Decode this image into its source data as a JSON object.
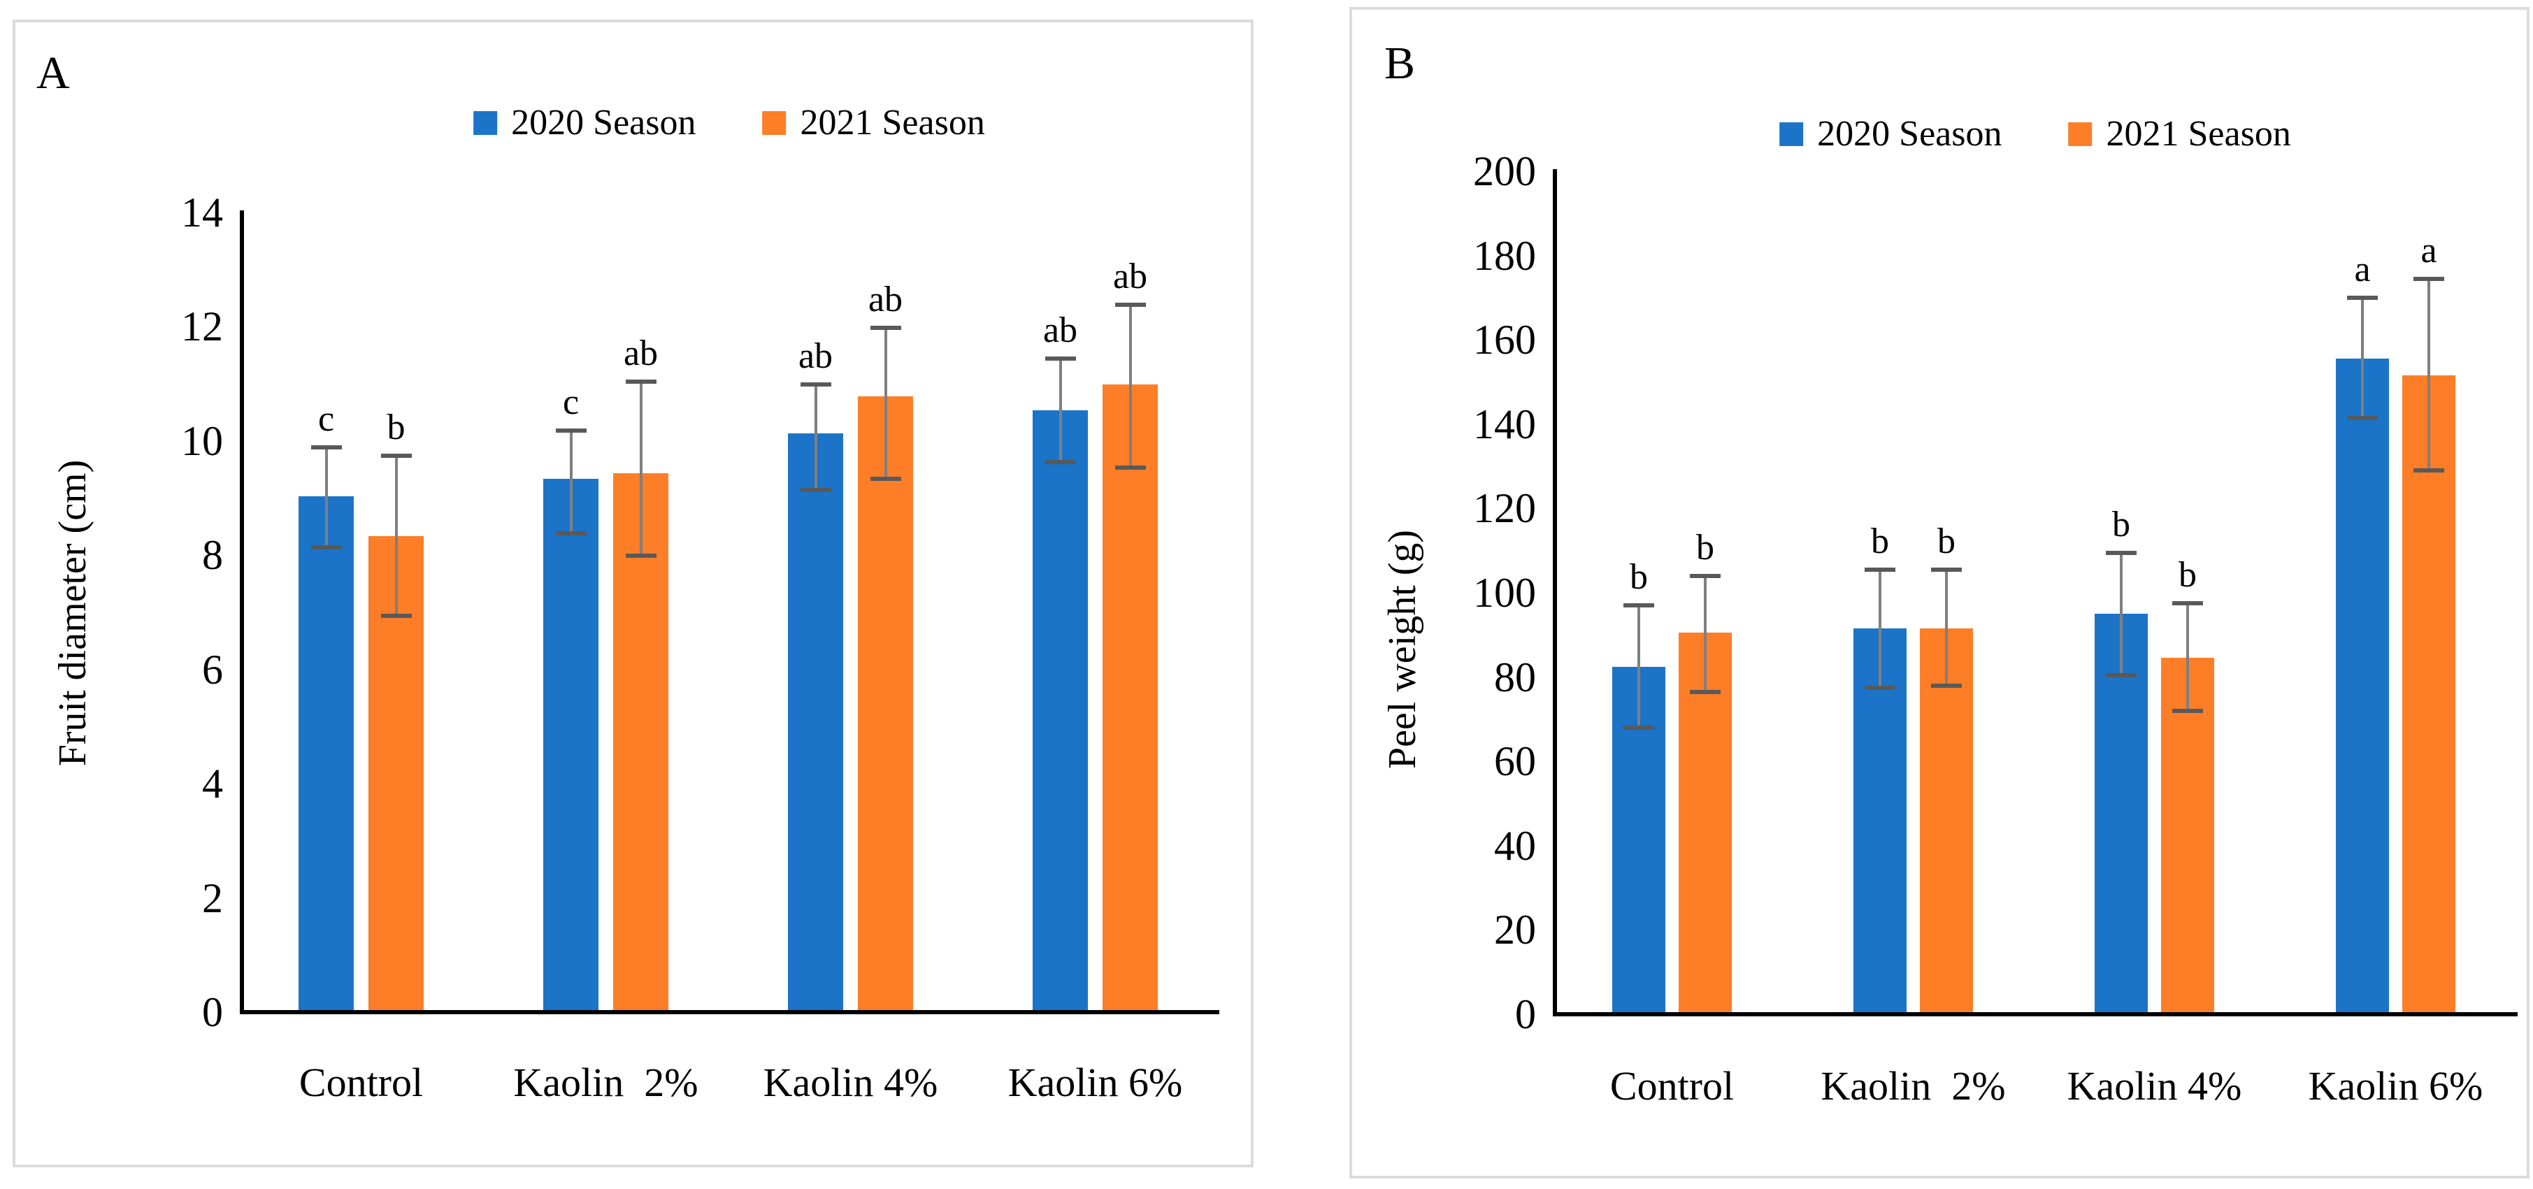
{
  "page": {
    "background": "#ffffff"
  },
  "colors": {
    "season2020": "#1B74C8",
    "season2021": "#FD7E27",
    "error_line": "#7F7F7F",
    "error_cap": "#595959",
    "axis_line": "#000000",
    "panel_border": "#DCDCDC",
    "text": "#000000"
  },
  "chart_data": [
    {
      "type": "bar",
      "panel_label": "A",
      "ylabel": "Fruit diameter (cm)",
      "ylim": [
        0,
        14
      ],
      "ytick_step": 2,
      "yticks": [
        0,
        2,
        4,
        6,
        8,
        10,
        12,
        14
      ],
      "categories": [
        "Control",
        "Kaolin  2%",
        "Kaolin 4%",
        "Kaolin 6%"
      ],
      "legend": [
        "2020 Season",
        "2021 Season"
      ],
      "legend_position": "top-center",
      "grid": false,
      "error_bars": true,
      "series": [
        {
          "name": "2020 Season",
          "color_key": "season2020",
          "values": [
            9.0,
            9.3,
            10.1,
            10.5
          ],
          "err_low": [
            8.1,
            8.35,
            9.1,
            9.6
          ],
          "err_high": [
            9.85,
            10.15,
            10.95,
            11.4
          ],
          "letters": [
            "c",
            "c",
            "ab",
            "ab"
          ]
        },
        {
          "name": "2021 Season",
          "color_key": "season2021",
          "values": [
            8.3,
            9.4,
            10.75,
            10.95
          ],
          "err_low": [
            6.9,
            7.95,
            9.3,
            9.5
          ],
          "err_high": [
            9.7,
            11.0,
            11.95,
            12.35
          ],
          "letters": [
            "b",
            "ab",
            "ab",
            "ab"
          ]
        }
      ]
    },
    {
      "type": "bar",
      "panel_label": "B",
      "ylabel": "Peel weight (g)",
      "ylim": [
        0,
        200
      ],
      "ytick_step": 20,
      "yticks": [
        0,
        20,
        40,
        60,
        80,
        100,
        120,
        140,
        160,
        180,
        200
      ],
      "categories": [
        "Control",
        "Kaolin  2%",
        "Kaolin 4%",
        "Kaolin 6%"
      ],
      "legend": [
        "2020 Season",
        "2021 Season"
      ],
      "legend_position": "top-center",
      "grid": false,
      "error_bars": true,
      "series": [
        {
          "name": "2020 Season",
          "color_key": "season2020",
          "values": [
            82,
            91,
            94.5,
            155
          ],
          "err_low": [
            67.5,
            77,
            80,
            141
          ],
          "err_high": [
            96.5,
            105,
            109,
            169.5
          ],
          "letters": [
            "b",
            "b",
            "b",
            "a"
          ]
        },
        {
          "name": "2021 Season",
          "color_key": "season2021",
          "values": [
            90,
            91,
            84,
            151
          ],
          "err_low": [
            76,
            77.5,
            71.5,
            128.5
          ],
          "err_high": [
            103.5,
            105,
            97,
            174
          ],
          "letters": [
            "b",
            "b",
            "b",
            "a"
          ]
        }
      ]
    }
  ]
}
